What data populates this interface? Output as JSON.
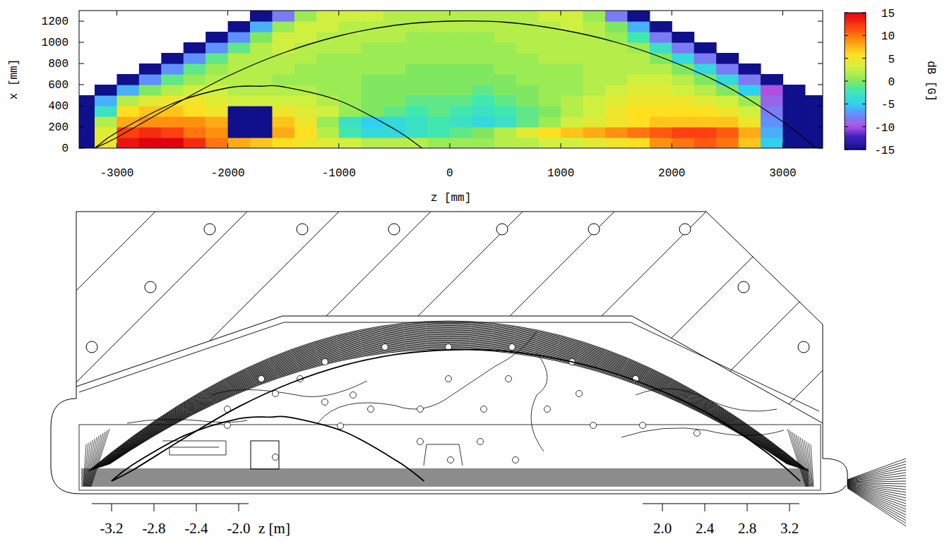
{
  "chart_data": {
    "type": "heatmap",
    "x_label": "z [mm]",
    "y_label": "x [mm]",
    "xlim": [
      -3340,
      3360
    ],
    "ylim": [
      0,
      1300
    ],
    "xticks": [
      -3000,
      -2000,
      -1000,
      0,
      1000,
      2000,
      3000
    ],
    "yticks": [
      0,
      200,
      400,
      600,
      800,
      1000,
      1200
    ],
    "x": [
      -3300,
      -3100,
      -2900,
      -2700,
      -2500,
      -2300,
      -2100,
      -1900,
      -1700,
      -1500,
      -1300,
      -1100,
      -900,
      -700,
      -500,
      -300,
      -100,
      100,
      300,
      500,
      700,
      900,
      1100,
      1300,
      1500,
      1700,
      1900,
      2100,
      2300,
      2500,
      2700,
      2900,
      3100,
      3300
    ],
    "y": [
      50,
      150,
      250,
      350,
      450,
      550,
      650,
      750,
      850,
      950,
      1050,
      1150,
      1250
    ],
    "values": [
      [
        -15,
        5,
        14,
        15,
        15,
        13,
        10,
        8,
        7,
        6,
        5,
        4,
        3,
        2,
        2,
        2,
        1,
        1,
        1,
        2,
        2,
        3,
        3,
        4,
        5,
        6,
        9,
        10,
        11,
        10,
        7,
        -5,
        -15,
        -15
      ],
      [
        -15,
        4,
        12,
        13,
        12,
        10,
        9,
        -15,
        -15,
        8,
        6,
        2,
        -2,
        -4,
        -4,
        -3,
        -2,
        -1,
        0,
        2,
        4,
        6,
        7,
        8,
        9,
        10,
        11,
        12,
        12,
        11,
        8,
        -6,
        -15,
        -15
      ],
      [
        -15,
        2,
        8,
        9,
        9,
        9,
        8,
        -15,
        -15,
        7,
        5,
        1,
        -3,
        -5,
        -4,
        -3,
        -2,
        -3,
        -4,
        -3,
        -1,
        1,
        3,
        4,
        5,
        6,
        7,
        7,
        7,
        7,
        5,
        -7,
        -15,
        -15
      ],
      [
        -15,
        -3,
        6,
        7,
        7,
        6,
        5,
        -15,
        -15,
        5,
        4,
        3,
        1,
        0,
        -1,
        -2,
        -1,
        -2,
        -3,
        -2,
        -1,
        0,
        2,
        3,
        5,
        6,
        6,
        6,
        6,
        5,
        3,
        -8,
        -15,
        -15
      ],
      [
        -15,
        -6,
        2,
        4,
        5,
        5,
        4,
        3,
        3,
        3,
        3,
        2,
        1,
        0,
        0,
        -1,
        -1,
        -1,
        -2,
        -1,
        0,
        1,
        2,
        3,
        4,
        5,
        5,
        5,
        4,
        3,
        1,
        -9,
        -15,
        -15
      ],
      [
        null,
        -15,
        -6,
        0,
        2,
        3,
        3,
        2,
        2,
        2,
        2,
        1,
        1,
        0,
        0,
        0,
        0,
        0,
        -1,
        0,
        0,
        1,
        1,
        2,
        3,
        4,
        4,
        3,
        2,
        0,
        -5,
        -10,
        -15,
        null
      ],
      [
        null,
        null,
        -15,
        -7,
        -1,
        1,
        2,
        2,
        2,
        1,
        1,
        1,
        1,
        0,
        0,
        0,
        0,
        0,
        0,
        0,
        1,
        1,
        1,
        2,
        2,
        3,
        3,
        2,
        0,
        -4,
        -8,
        -15,
        null,
        null
      ],
      [
        null,
        null,
        null,
        -15,
        -7,
        -1,
        1,
        2,
        2,
        2,
        1,
        1,
        1,
        1,
        1,
        0,
        0,
        0,
        0,
        1,
        1,
        1,
        1,
        2,
        2,
        2,
        2,
        0,
        -4,
        -8,
        -15,
        null,
        null,
        null
      ],
      [
        null,
        null,
        null,
        null,
        -15,
        -7,
        -1,
        2,
        2,
        2,
        2,
        1,
        1,
        1,
        1,
        1,
        1,
        1,
        1,
        1,
        1,
        2,
        2,
        2,
        2,
        2,
        0,
        -4,
        -8,
        -15,
        null,
        null,
        null,
        null
      ],
      [
        null,
        null,
        null,
        null,
        null,
        -15,
        -7,
        -1,
        2,
        3,
        2,
        2,
        2,
        1,
        1,
        1,
        1,
        1,
        1,
        1,
        2,
        2,
        2,
        2,
        2,
        1,
        -3,
        -8,
        -15,
        null,
        null,
        null,
        null,
        null
      ],
      [
        null,
        null,
        null,
        null,
        null,
        null,
        -15,
        -7,
        0,
        3,
        3,
        2,
        2,
        2,
        2,
        1,
        1,
        1,
        1,
        2,
        2,
        2,
        2,
        2,
        1,
        -2,
        -8,
        -15,
        null,
        null,
        null,
        null,
        null,
        null
      ],
      [
        null,
        null,
        null,
        null,
        null,
        null,
        null,
        -15,
        -6,
        1,
        3,
        3,
        2,
        2,
        2,
        2,
        2,
        2,
        2,
        2,
        2,
        2,
        3,
        2,
        0,
        -6,
        -15,
        null,
        null,
        null,
        null,
        null,
        null,
        null
      ],
      [
        null,
        null,
        null,
        null,
        null,
        null,
        null,
        null,
        -15,
        -8,
        1,
        3,
        3,
        3,
        2,
        2,
        2,
        2,
        2,
        2,
        2,
        3,
        3,
        1,
        -8,
        -15,
        null,
        null,
        null,
        null,
        null,
        null,
        null,
        null
      ]
    ],
    "colorbar_label": "dB [G]",
    "colorbar_lim": [
      -15,
      15
    ],
    "colorbar_ticks": [
      -15,
      -10,
      -5,
      0,
      5,
      10,
      15
    ],
    "series": [
      {
        "type": "line",
        "color": "#000000",
        "x": [
          -3200,
          -3000,
          -2500,
          -2000,
          -1500,
          -1000,
          -500,
          0,
          500,
          1000,
          1500,
          2000,
          2500,
          3000,
          3300
        ],
        "values": [
          0,
          100,
          400,
          680,
          900,
          1060,
          1160,
          1200,
          1190,
          1120,
          1000,
          820,
          580,
          250,
          0
        ]
      },
      {
        "type": "line",
        "color": "#000000",
        "x": [
          -3200,
          -3000,
          -2500,
          -2000,
          -1700,
          -1500,
          -1000,
          -500,
          -250
        ],
        "values": [
          0,
          150,
          420,
          570,
          585,
          580,
          450,
          180,
          0
        ]
      }
    ]
  },
  "drawing": {
    "axis_label": "z [m]",
    "left_ticks": [
      -3.2,
      -2.8,
      -2.4,
      {
        "value": -2,
        "label": "-2.0"
      }
    ],
    "right_ticks": [
      {
        "value": 2,
        "label": "2.0"
      },
      2.4,
      2.8,
      3.2
    ]
  }
}
